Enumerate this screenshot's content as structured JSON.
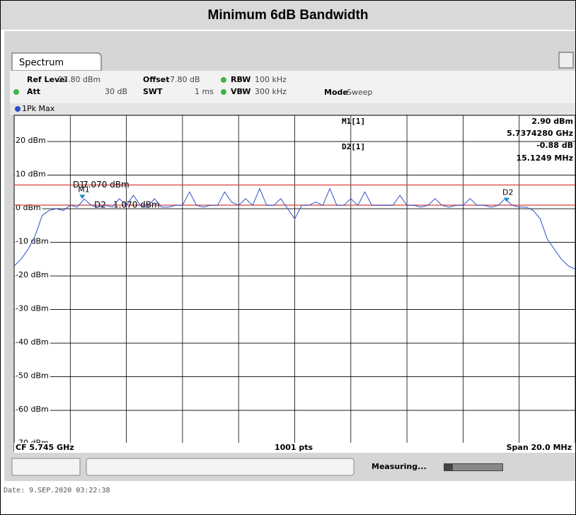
{
  "title": "Minimum 6dB Bandwidth",
  "panel": {
    "tab": "Spectrum",
    "settings": [
      {
        "name": "Ref Level",
        "value": "27.80 dBm"
      },
      {
        "name": "Offset",
        "value": "7.80 dB"
      },
      {
        "name": "RBW",
        "value": "100 kHz"
      },
      {
        "name": "Att",
        "value": "30 dB"
      },
      {
        "name": "SWT",
        "value": "1 ms"
      },
      {
        "name": "VBW",
        "value": "300 kHz"
      },
      {
        "name": "Mode",
        "value": "Sweep"
      }
    ],
    "footer": {
      "left": "CF 5.745 GHz",
      "center": "1001 pts",
      "right": "Span 20.0 MHz"
    },
    "status": "Measuring...",
    "date": "Date: 9.SEP.2020  03:22:38"
  },
  "chart_data": {
    "type": "line",
    "ylim": [
      -72.2,
      27.8
    ],
    "xlim": [
      5735,
      5755
    ],
    "yticks": [
      {
        "value": 20,
        "label": "20 dBm"
      },
      {
        "value": 10,
        "label": "10 dBm"
      },
      {
        "value": 0,
        "label": "0 dBm"
      },
      {
        "value": -10,
        "label": "-10 dBm"
      },
      {
        "value": -20,
        "label": "-20 dBm"
      },
      {
        "value": -30,
        "label": "-30 dBm"
      },
      {
        "value": -40,
        "label": "-40 dBm"
      },
      {
        "value": -50,
        "label": "-50 dBm"
      },
      {
        "value": -60,
        "label": "-60 dBm"
      },
      {
        "value": -70,
        "label": "-70 dBm"
      }
    ],
    "xticks": [
      5735,
      5737,
      5739,
      5741,
      5743,
      5745,
      5747,
      5749,
      5751,
      5753,
      5755
    ],
    "grid": true,
    "x": [
      5735,
      5735.25,
      5735.5,
      5735.75,
      5736,
      5736.25,
      5736.5,
      5736.75,
      5737,
      5737.25,
      5737.5,
      5737.75,
      5738,
      5738.25,
      5738.5,
      5738.75,
      5739,
      5739.25,
      5739.5,
      5739.75,
      5740,
      5740.25,
      5740.5,
      5740.75,
      5741,
      5741.25,
      5741.5,
      5741.75,
      5742,
      5742.25,
      5742.5,
      5742.75,
      5743,
      5743.25,
      5743.5,
      5743.75,
      5744,
      5744.25,
      5744.5,
      5744.75,
      5745,
      5745.25,
      5745.5,
      5745.75,
      5746,
      5746.25,
      5746.5,
      5746.75,
      5747,
      5747.25,
      5747.5,
      5747.75,
      5748,
      5748.25,
      5748.5,
      5748.75,
      5749,
      5749.25,
      5749.5,
      5749.75,
      5750,
      5750.25,
      5750.5,
      5750.75,
      5751,
      5751.25,
      5751.5,
      5751.75,
      5752,
      5752.25,
      5752.5,
      5752.75,
      5753,
      5753.25,
      5753.5,
      5753.75,
      5754,
      5754.25,
      5754.5,
      5754.75,
      5755
    ],
    "series": [
      {
        "name": "1Pk Max",
        "color": "#2b4fc9",
        "values": [
          -17,
          -15,
          -12,
          -8,
          -2,
          -0.5,
          0,
          -0.5,
          1,
          0.5,
          2.9,
          1,
          0.5,
          1,
          0.5,
          3,
          1,
          4,
          1,
          0.5,
          3,
          0.5,
          0.5,
          1,
          1,
          5,
          1,
          0.5,
          1,
          1,
          5,
          2,
          1,
          3,
          1,
          6,
          1,
          1,
          3,
          0,
          -3,
          1,
          1,
          2,
          1,
          6,
          1,
          1,
          3,
          1,
          5,
          1,
          1,
          1,
          1,
          4,
          1,
          1,
          0.5,
          1,
          3,
          1,
          0.5,
          1,
          1,
          3,
          1,
          1,
          0.5,
          1,
          3,
          1,
          0.5,
          0.5,
          -0.5,
          -3,
          -9,
          -12,
          -15,
          -17,
          -18
        ]
      }
    ],
    "display_lines": [
      {
        "name": "D1",
        "value": 7.07,
        "label": "7.070 dBm",
        "color": "#d9403a"
      },
      {
        "name": "D2",
        "value": 1.07,
        "label": "1.070 dBm",
        "color": "#d9403a"
      }
    ],
    "markers": [
      {
        "name": "M1",
        "x": 5737.428,
        "y": 2.9
      },
      {
        "name": "D2",
        "x": 5752.553,
        "y": 2.02
      }
    ],
    "marker_table": [
      {
        "name": "M1[1]",
        "level": "2.90 dBm",
        "position": "5.7374280 GHz"
      },
      {
        "name": "D2[1]",
        "level": "-0.88 dB",
        "position": "15.1249 MHz"
      }
    ]
  }
}
